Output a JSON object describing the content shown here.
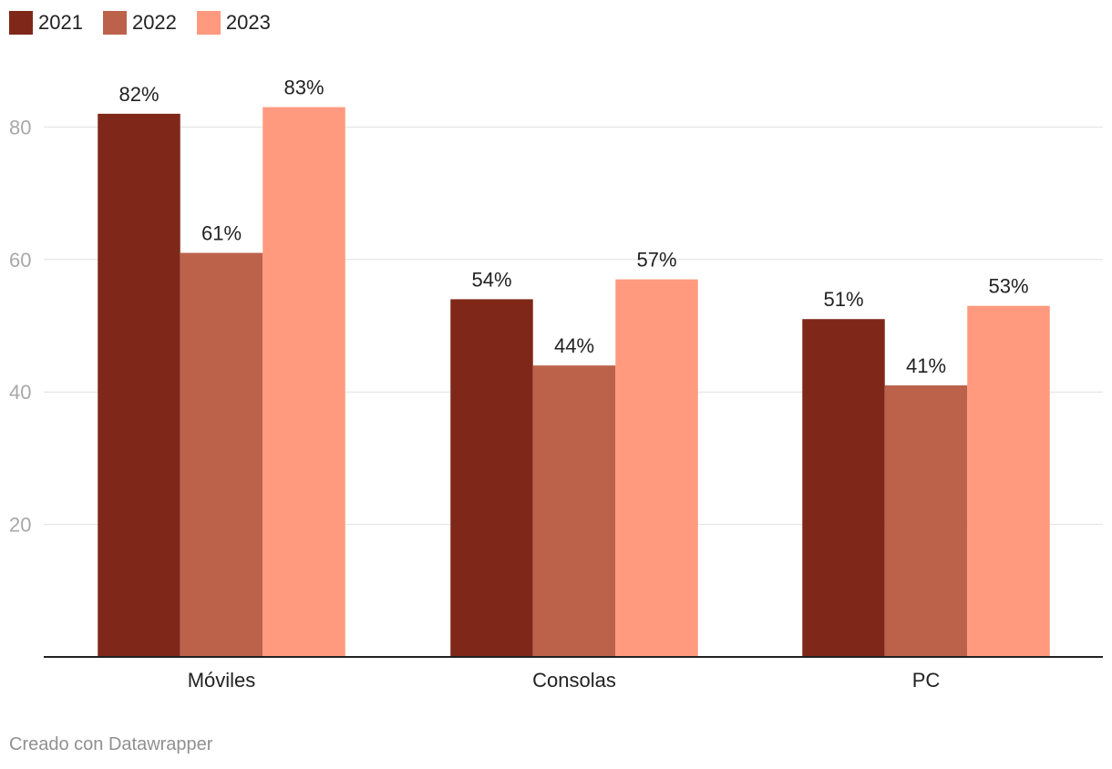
{
  "chart_data": {
    "type": "bar",
    "categories": [
      "Móviles",
      "Consolas",
      "PC"
    ],
    "series": [
      {
        "name": "2021",
        "color": "#7f2819",
        "values": [
          82,
          54,
          51
        ],
        "labels": [
          "82%",
          "54%",
          "51%"
        ]
      },
      {
        "name": "2022",
        "color": "#bc624b",
        "values": [
          61,
          44,
          41
        ],
        "labels": [
          "61%",
          "44%",
          "41%"
        ]
      },
      {
        "name": "2023",
        "color": "#ff9a7e",
        "values": [
          83,
          57,
          53
        ],
        "labels": [
          "83%",
          "57%",
          "53%"
        ]
      }
    ],
    "yticks": [
      20,
      40,
      60,
      80
    ],
    "ytick_labels": [
      "20",
      "40",
      "60",
      "80"
    ],
    "ylim": [
      0,
      90
    ],
    "grid": true,
    "legend_position": "top-left"
  },
  "credit": "Creado con Datawrapper"
}
